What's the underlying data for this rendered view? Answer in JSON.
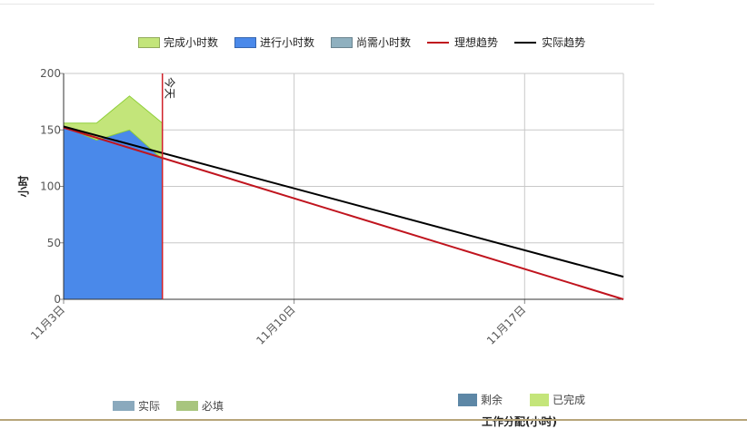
{
  "chart_data": {
    "type": "area",
    "ylabel": "小时",
    "xlabel": "",
    "ylim": [
      0,
      200
    ],
    "x_domain": [
      "2014-11-03",
      "2014-11-20"
    ],
    "y_ticks": [
      0,
      50,
      100,
      150,
      200
    ],
    "x_ticks": [
      {
        "date": "2014-11-03",
        "label": "11月3日"
      },
      {
        "date": "2014-11-10",
        "label": "11月10日"
      },
      {
        "date": "2014-11-17",
        "label": "11月17日"
      }
    ],
    "today_marker": {
      "date": "2014-11-06",
      "label": "今天"
    },
    "series": [
      {
        "name": "完成小时数",
        "kind": "stacked-area",
        "color": "#c3e57a",
        "points": [
          {
            "date": "2014-11-03",
            "value": 3
          },
          {
            "date": "2014-11-04",
            "value": 15
          },
          {
            "date": "2014-11-05",
            "value": 30
          },
          {
            "date": "2014-11-06",
            "value": 32
          }
        ]
      },
      {
        "name": "进行小时数",
        "kind": "area",
        "color": "#4a89ea",
        "points": [
          {
            "date": "2014-11-03",
            "value": 153
          },
          {
            "date": "2014-11-04",
            "value": 141
          },
          {
            "date": "2014-11-05",
            "value": 150
          },
          {
            "date": "2014-11-06",
            "value": 124
          }
        ]
      },
      {
        "name": "尚需小时数",
        "kind": "area",
        "color": "#8fb0bf",
        "points": []
      },
      {
        "name": "理想趋势",
        "kind": "line",
        "color": "#c0141e",
        "points": [
          {
            "date": "2014-11-03",
            "value": 152
          },
          {
            "date": "2014-11-20",
            "value": 0
          }
        ]
      },
      {
        "name": "实际趋势",
        "kind": "line",
        "color": "#000000",
        "points": [
          {
            "date": "2014-11-03",
            "value": 153
          },
          {
            "date": "2014-11-20",
            "value": 20
          }
        ]
      }
    ],
    "grid": true,
    "legend_position": "top"
  },
  "legend": {
    "completed": "完成小时数",
    "in_progress": "进行小时数",
    "remaining": "尚需小时数",
    "ideal_trend": "理想趋势",
    "actual_trend": "实际趋势"
  },
  "bottom_legend_left": {
    "actual": "实际",
    "required": "必填",
    "actual_color": "#8aa9bd",
    "required_color": "#a8c57e"
  },
  "bottom_legend_right": {
    "remaining": "剩余",
    "done": "已完成",
    "remaining_color": "#5d87a6",
    "done_color": "#c4e57a"
  },
  "cutoff_text": "工作分配(小时)"
}
